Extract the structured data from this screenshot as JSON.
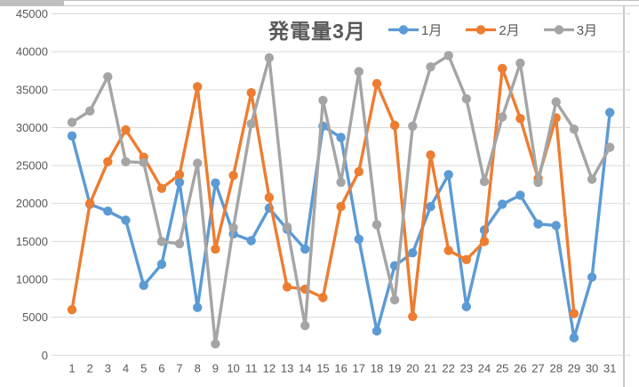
{
  "chart_data": {
    "type": "line",
    "title": "発電量3月",
    "categories": [
      1,
      2,
      3,
      4,
      5,
      6,
      7,
      8,
      9,
      10,
      11,
      12,
      13,
      14,
      15,
      16,
      17,
      18,
      19,
      20,
      21,
      22,
      23,
      24,
      25,
      26,
      27,
      28,
      29,
      30,
      31
    ],
    "series": [
      {
        "name": "1月",
        "color": "#5B9BD5",
        "values": [
          28900,
          19900,
          19000,
          17800,
          9200,
          12000,
          22800,
          6300,
          22700,
          16000,
          15100,
          19400,
          16600,
          14000,
          30200,
          28700,
          15300,
          3200,
          11800,
          13500,
          19600,
          23800,
          6400,
          16500,
          19900,
          21100,
          17300,
          17100,
          2300,
          10300,
          32000
        ]
      },
      {
        "name": "2月",
        "color": "#ED7D31",
        "values": [
          6000,
          20000,
          25500,
          29700,
          26100,
          22000,
          23800,
          35400,
          14000,
          23700,
          34600,
          20800,
          9000,
          8700,
          7600,
          19600,
          24200,
          35800,
          30300,
          5100,
          26400,
          13800,
          12600,
          15000,
          37800,
          31200,
          23300,
          31300,
          5500,
          null,
          null
        ]
      },
      {
        "name": "3月",
        "color": "#A5A5A5",
        "values": [
          30700,
          32200,
          36700,
          25500,
          25400,
          15000,
          14700,
          25300,
          1500,
          16800,
          30500,
          39200,
          16900,
          3900,
          33600,
          22800,
          37400,
          17200,
          7300,
          30200,
          38000,
          39500,
          33800,
          22900,
          31400,
          38500,
          22800,
          33400,
          29800,
          23200,
          27400
        ]
      }
    ],
    "ylim": [
      0,
      45000
    ],
    "y_tick_step": 5000,
    "grid": true,
    "legend_position": "top",
    "xlabel": "",
    "ylabel": ""
  },
  "style": {
    "gridline_color": "#D9D9D9",
    "tick_label_color": "#595959",
    "title_color": "#595959",
    "line_width": 3.4,
    "marker_radius": 5.2
  }
}
